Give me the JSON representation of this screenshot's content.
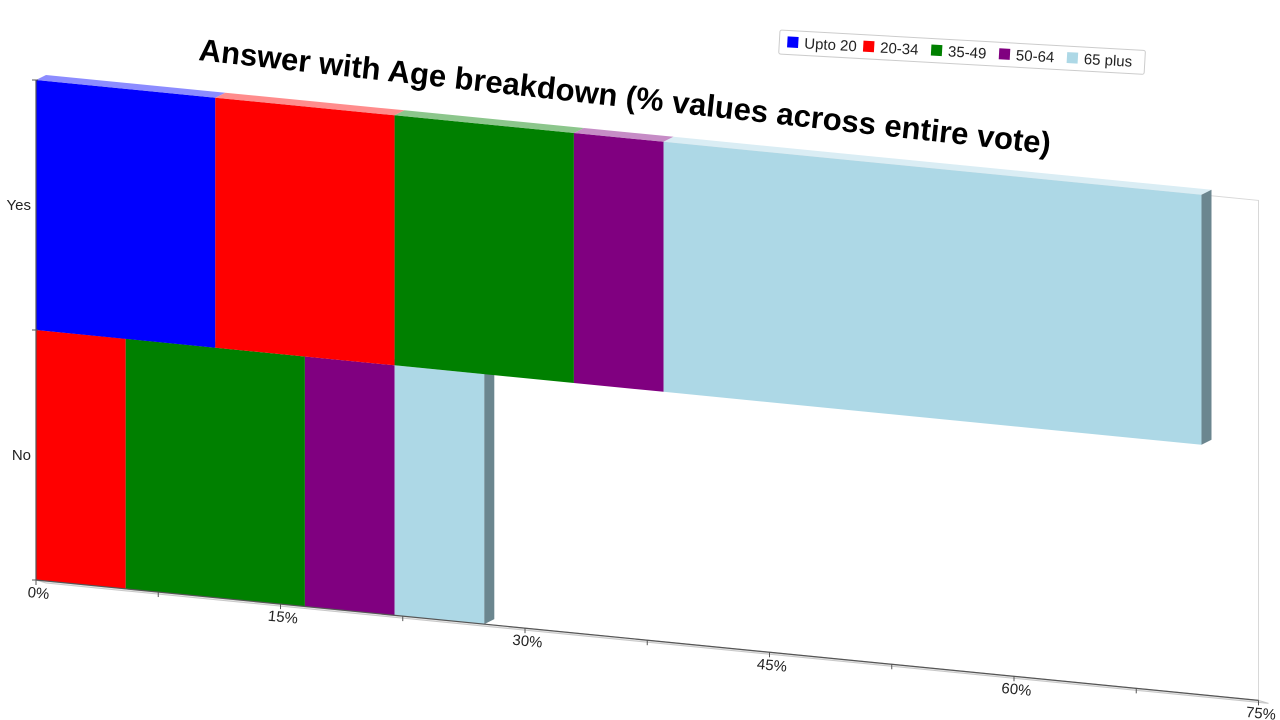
{
  "chart_data": {
    "type": "bar",
    "orientation": "horizontal",
    "stacked": true,
    "title": "Answer with Age breakdown (% values across entire vote)",
    "categories": [
      "No",
      "Yes"
    ],
    "series": [
      {
        "name": "Upto 20",
        "color": "#0000ff",
        "values": [
          0,
          11
        ]
      },
      {
        "name": "20-34",
        "color": "#ff0000",
        "values": [
          5.5,
          11
        ]
      },
      {
        "name": "35-49",
        "color": "#008000",
        "values": [
          11,
          11
        ]
      },
      {
        "name": "50-64",
        "color": "#800080",
        "values": [
          5.5,
          5.5
        ]
      },
      {
        "name": "65 plus",
        "color": "#add8e6",
        "values": [
          5.5,
          33
        ]
      }
    ],
    "xlim": [
      0,
      75
    ],
    "xticks": [
      "0%",
      "15%",
      "30%",
      "45%",
      "60%",
      "75%"
    ],
    "xlabel": "",
    "ylabel": "",
    "grid": false,
    "legend_position": "top-right"
  }
}
